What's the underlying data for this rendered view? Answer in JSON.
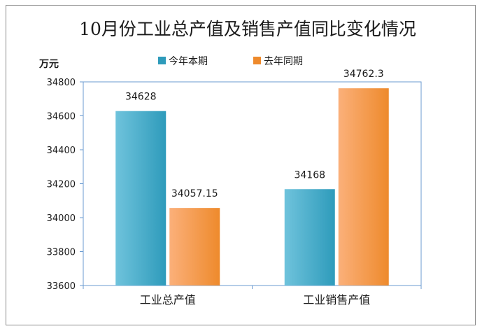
{
  "chart_data": {
    "type": "bar",
    "title": "10月份工业总产值及销售产值同比变化情况",
    "ylabel": "万元",
    "categories": [
      "工业总产值",
      "工业销售产值"
    ],
    "series": [
      {
        "name": "今年本期",
        "values": [
          34628,
          34168
        ],
        "labels": [
          "34628",
          "34168"
        ]
      },
      {
        "name": "去年同期",
        "values": [
          34057.15,
          34762.3
        ],
        "labels": [
          "34057.15",
          "34762.3"
        ]
      }
    ],
    "ylim": [
      33600,
      34800
    ],
    "yticks": [
      33600,
      33800,
      34000,
      34200,
      34400,
      34600,
      34800
    ],
    "legend_position": "top",
    "grid": false
  },
  "colors": {
    "series_0_light": "#6fc3dc",
    "series_0_dark": "#2e9bbb",
    "series_1_light": "#fbb07a",
    "series_1_dark": "#ee8a2c",
    "plot_border": "#6b9bd1"
  }
}
